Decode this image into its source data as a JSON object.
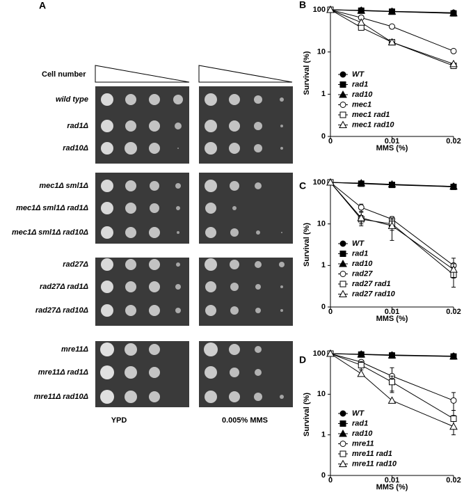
{
  "panel_a": {
    "label": "A",
    "cell_number_label": "Cell number",
    "gels": [
      {
        "rows": [
          "wild type",
          "rad1Δ",
          "rad10Δ"
        ]
      },
      {
        "rows": [
          "mec1Δ sml1Δ",
          "mec1Δ sml1Δ rad1Δ",
          "mec1Δ sml1Δ rad10Δ"
        ]
      },
      {
        "rows": [
          "rad27Δ",
          "rad27Δ rad1Δ",
          "rad27Δ rad10Δ"
        ]
      },
      {
        "rows": [
          "mre11Δ",
          "mre11Δ rad1Δ",
          "mre11Δ rad10Δ"
        ]
      }
    ],
    "columns": [
      "YPD",
      "0.005% MMS"
    ]
  },
  "chart_data": [
    {
      "type": "line",
      "panel": "B",
      "xlabel": "MMS (%)",
      "ylabel": "Survival (%)",
      "log_y": true,
      "x": [
        0,
        0.005,
        0.01,
        0.02
      ],
      "xlim": [
        0,
        0.02
      ],
      "xticks": [
        0,
        0.01,
        0.02
      ],
      "ylim": [
        0.1,
        100
      ],
      "yticks": [
        {
          "value": 0.1,
          "label": "0"
        },
        1,
        10,
        100
      ],
      "series": [
        {
          "name": "WT",
          "color": "#000000",
          "marker": "circle",
          "filled": true,
          "values": [
            100,
            97,
            92,
            85
          ]
        },
        {
          "name": "rad1",
          "color": "#000000",
          "marker": "square",
          "filled": true,
          "values": [
            100,
            95,
            90,
            82
          ]
        },
        {
          "name": "rad10",
          "color": "#000000",
          "marker": "triangle",
          "filled": true,
          "values": [
            100,
            96,
            91,
            83
          ]
        },
        {
          "name": "mec1",
          "color": "#000000",
          "marker": "circle",
          "filled": false,
          "values": [
            100,
            65,
            40,
            10.5
          ]
        },
        {
          "name": "mec1 rad1",
          "color": "#000000",
          "marker": "square",
          "filled": false,
          "values": [
            100,
            38,
            17,
            4.7
          ]
        },
        {
          "name": "mec1 rad10",
          "color": "#000000",
          "marker": "triangle",
          "filled": false,
          "values": [
            100,
            50,
            17,
            5.2
          ]
        }
      ]
    },
    {
      "type": "line",
      "panel": "C",
      "xlabel": "MMS (%)",
      "ylabel": "Survival (%)",
      "log_y": true,
      "x": [
        0,
        0.005,
        0.01,
        0.02
      ],
      "xlim": [
        0,
        0.02
      ],
      "xticks": [
        0,
        0.01,
        0.02
      ],
      "ylim": [
        0.1,
        100
      ],
      "yticks": [
        {
          "value": 0.1,
          "label": "0"
        },
        1,
        10,
        100
      ],
      "series": [
        {
          "name": "WT",
          "color": "#000000",
          "marker": "circle",
          "filled": true,
          "values": [
            100,
            95,
            88,
            80
          ]
        },
        {
          "name": "rad1",
          "color": "#000000",
          "marker": "square",
          "filled": true,
          "values": [
            100,
            93,
            87,
            78
          ]
        },
        {
          "name": "rad10",
          "color": "#000000",
          "marker": "triangle",
          "filled": true,
          "values": [
            100,
            96,
            90,
            80
          ]
        },
        {
          "name": "rad27",
          "color": "#000000",
          "marker": "circle",
          "filled": false,
          "values": [
            100,
            25,
            13,
            1.0
          ],
          "errors": [
            0,
            5,
            2,
            0.5
          ]
        },
        {
          "name": "rad27 rad1",
          "color": "#000000",
          "marker": "square",
          "filled": false,
          "values": [
            100,
            13,
            10,
            0.6
          ],
          "errors": [
            0,
            3,
            3,
            0.3
          ]
        },
        {
          "name": "rad27 rad10",
          "color": "#000000",
          "marker": "triangle",
          "filled": false,
          "values": [
            100,
            14,
            9,
            0.8
          ],
          "errors": [
            0,
            5,
            5,
            0.3
          ]
        }
      ]
    },
    {
      "type": "line",
      "panel": "D",
      "xlabel": "MMS (%)",
      "ylabel": "Survival (%)",
      "log_y": true,
      "x": [
        0,
        0.005,
        0.01,
        0.02
      ],
      "xlim": [
        0,
        0.02
      ],
      "xticks": [
        0,
        0.01,
        0.02
      ],
      "ylim": [
        0.1,
        100
      ],
      "yticks": [
        {
          "value": 0.1,
          "label": "0"
        },
        1,
        10,
        100
      ],
      "series": [
        {
          "name": "WT",
          "color": "#000000",
          "marker": "circle",
          "filled": true,
          "values": [
            100,
            97,
            93,
            87
          ]
        },
        {
          "name": "rad1",
          "color": "#000000",
          "marker": "square",
          "filled": true,
          "values": [
            100,
            95,
            90,
            85
          ]
        },
        {
          "name": "rad10",
          "color": "#000000",
          "marker": "triangle",
          "filled": true,
          "values": [
            100,
            96,
            91,
            86
          ]
        },
        {
          "name": "mre11",
          "color": "#000000",
          "marker": "circle",
          "filled": false,
          "values": [
            100,
            62,
            28,
            7
          ],
          "errors": [
            0,
            0,
            17,
            4
          ]
        },
        {
          "name": "mre11 rad1",
          "color": "#000000",
          "marker": "square",
          "filled": false,
          "values": [
            100,
            52,
            20,
            2.5
          ],
          "errors": [
            0,
            12,
            8,
            1.5
          ]
        },
        {
          "name": "mre11 rad10",
          "color": "#000000",
          "marker": "triangle",
          "filled": false,
          "values": [
            100,
            32,
            7,
            1.6
          ]
        }
      ]
    }
  ]
}
